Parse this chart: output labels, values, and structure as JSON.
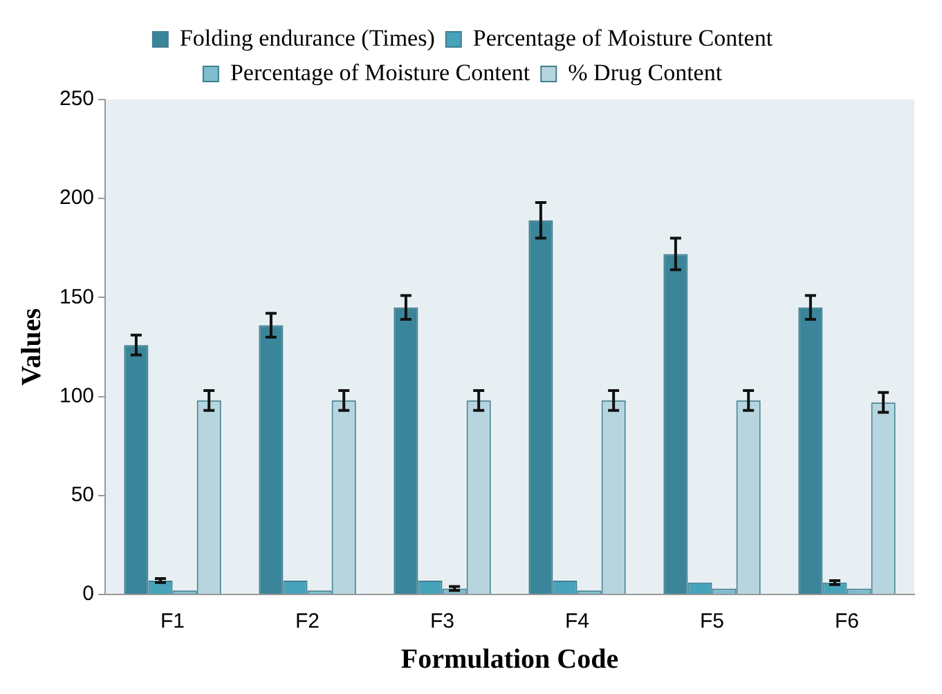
{
  "chart_data": {
    "type": "bar",
    "xlabel": "Formulation Code",
    "ylabel": "Values",
    "categories": [
      "F1",
      "F2",
      "F3",
      "F4",
      "F5",
      "F6"
    ],
    "series": [
      {
        "name": "Folding endurance (Times)",
        "color": "#3a8599",
        "values": [
          126,
          136,
          145,
          189,
          172,
          145
        ],
        "errors": [
          5,
          6,
          6,
          9,
          8,
          6
        ]
      },
      {
        "name": "Percentage of Moisture Content",
        "color": "#47a3ba",
        "values": [
          7,
          7,
          7,
          7,
          6,
          6
        ],
        "errors": [
          1,
          null,
          null,
          null,
          null,
          1
        ]
      },
      {
        "name": "Percentage of Moisture Content",
        "color": "#7fbccd",
        "values": [
          2,
          2,
          3,
          2,
          3,
          3
        ],
        "errors": [
          null,
          null,
          1,
          null,
          null,
          null
        ]
      },
      {
        "name": "% Drug Content",
        "color": "#b7d5df",
        "values": [
          98,
          98,
          98,
          98,
          98,
          97
        ],
        "errors": [
          5,
          5,
          5,
          5,
          5,
          5
        ]
      }
    ],
    "ylim": [
      0,
      250
    ],
    "yticks": [
      0,
      50,
      100,
      150,
      200,
      250
    ],
    "legend": "top",
    "grid": false
  }
}
